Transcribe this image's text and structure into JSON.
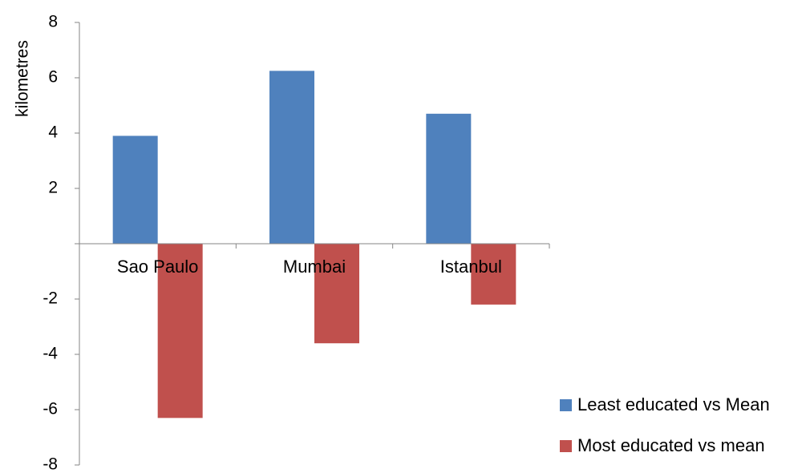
{
  "chart_data": {
    "type": "bar",
    "title": "",
    "xlabel": "",
    "ylabel": "kilometres",
    "ylim": [
      -8,
      8
    ],
    "yticks": [
      8,
      6,
      4,
      2,
      -2,
      -4,
      -6,
      -8
    ],
    "categories": [
      "Sao Paulo",
      "Mumbai",
      "Istanbul"
    ],
    "series": [
      {
        "name": "Least educated vs Mean",
        "color": "#4F81BD",
        "values": [
          3.9,
          6.25,
          4.7
        ]
      },
      {
        "name": "Most educated vs mean",
        "color": "#C0504D",
        "values": [
          -6.3,
          -3.6,
          -2.2
        ]
      }
    ],
    "grid": false,
    "legend_position": "bottom-right"
  }
}
